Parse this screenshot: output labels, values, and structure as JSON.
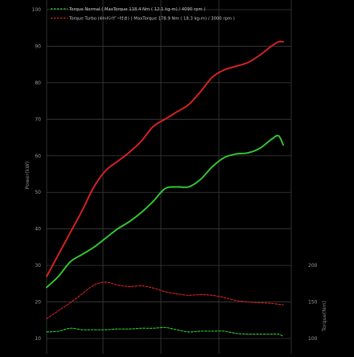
{
  "chart_data": {
    "type": "line",
    "title": "",
    "ylabel": "Power(kW)",
    "y2label": "Torque(Nm)",
    "ylim": [
      9,
      102
    ],
    "yticks": [
      10,
      20,
      30,
      40,
      50,
      60,
      70,
      80,
      90,
      100
    ],
    "y2ticks": [
      100,
      150,
      200
    ],
    "grid": true,
    "legend_position": "top-left",
    "legend": [
      {
        "label": "Torque Normal ( MaxTorque 118.4 Nm ( 12.1 kg-m) / 4090 rpm )",
        "color": "#33cc33",
        "dash": true
      },
      {
        "label": "Torque Turbo  (4ｷｬﾀﾗｲｻﾞｰ付き)  ( MaxTorque 178.9 Nm ( 18.3 kg-m) / 3000 rpm )",
        "color": "#dd2222",
        "dash": true
      }
    ],
    "series": [
      {
        "axis": "power",
        "color": "#dd2222",
        "dash": false,
        "x": [
          0.0,
          0.05,
          0.1,
          0.15,
          0.2,
          0.25,
          0.3,
          0.35,
          0.4,
          0.45,
          0.5,
          0.55,
          0.6,
          0.65,
          0.7,
          0.75,
          0.8,
          0.85,
          0.9,
          0.95,
          0.98,
          1.0
        ],
        "values": [
          27,
          33,
          39,
          45,
          51.5,
          56,
          58.5,
          61,
          64,
          68,
          70,
          72,
          74,
          77.5,
          81.5,
          83.5,
          84.5,
          85.5,
          87.5,
          90,
          91.2,
          91.2
        ]
      },
      {
        "axis": "power",
        "color": "#33cc33",
        "dash": false,
        "x": [
          0.0,
          0.05,
          0.1,
          0.15,
          0.2,
          0.25,
          0.3,
          0.35,
          0.4,
          0.45,
          0.5,
          0.55,
          0.6,
          0.65,
          0.7,
          0.75,
          0.8,
          0.85,
          0.9,
          0.95,
          0.98,
          1.0
        ],
        "values": [
          24,
          27,
          31,
          33,
          35,
          37.5,
          40,
          42,
          44.5,
          47.5,
          51,
          51.5,
          51.5,
          53.5,
          57,
          59.5,
          60.5,
          60.8,
          62,
          64.5,
          65.5,
          63
        ]
      },
      {
        "axis": "torque",
        "color": "#dd2222",
        "dash": true,
        "x": [
          0.0,
          0.05,
          0.1,
          0.15,
          0.2,
          0.25,
          0.3,
          0.35,
          0.4,
          0.45,
          0.5,
          0.55,
          0.6,
          0.65,
          0.7,
          0.75,
          0.8,
          0.85,
          0.9,
          0.95,
          1.0
        ],
        "values": [
          127,
          138,
          149,
          161,
          173,
          177,
          173,
          171,
          172,
          169,
          164,
          161,
          159,
          160,
          159,
          156,
          152,
          150,
          149,
          148,
          146
        ]
      },
      {
        "axis": "torque",
        "color": "#33cc33",
        "dash": true,
        "x": [
          0.0,
          0.05,
          0.1,
          0.15,
          0.2,
          0.25,
          0.3,
          0.35,
          0.4,
          0.45,
          0.5,
          0.55,
          0.6,
          0.65,
          0.7,
          0.75,
          0.8,
          0.85,
          0.9,
          0.95,
          0.98,
          1.0
        ],
        "values": [
          109,
          110,
          114,
          112,
          112,
          112,
          113,
          113,
          114,
          114,
          115,
          112,
          109,
          110,
          110,
          110,
          107,
          106,
          106,
          106,
          106,
          103
        ]
      }
    ]
  }
}
